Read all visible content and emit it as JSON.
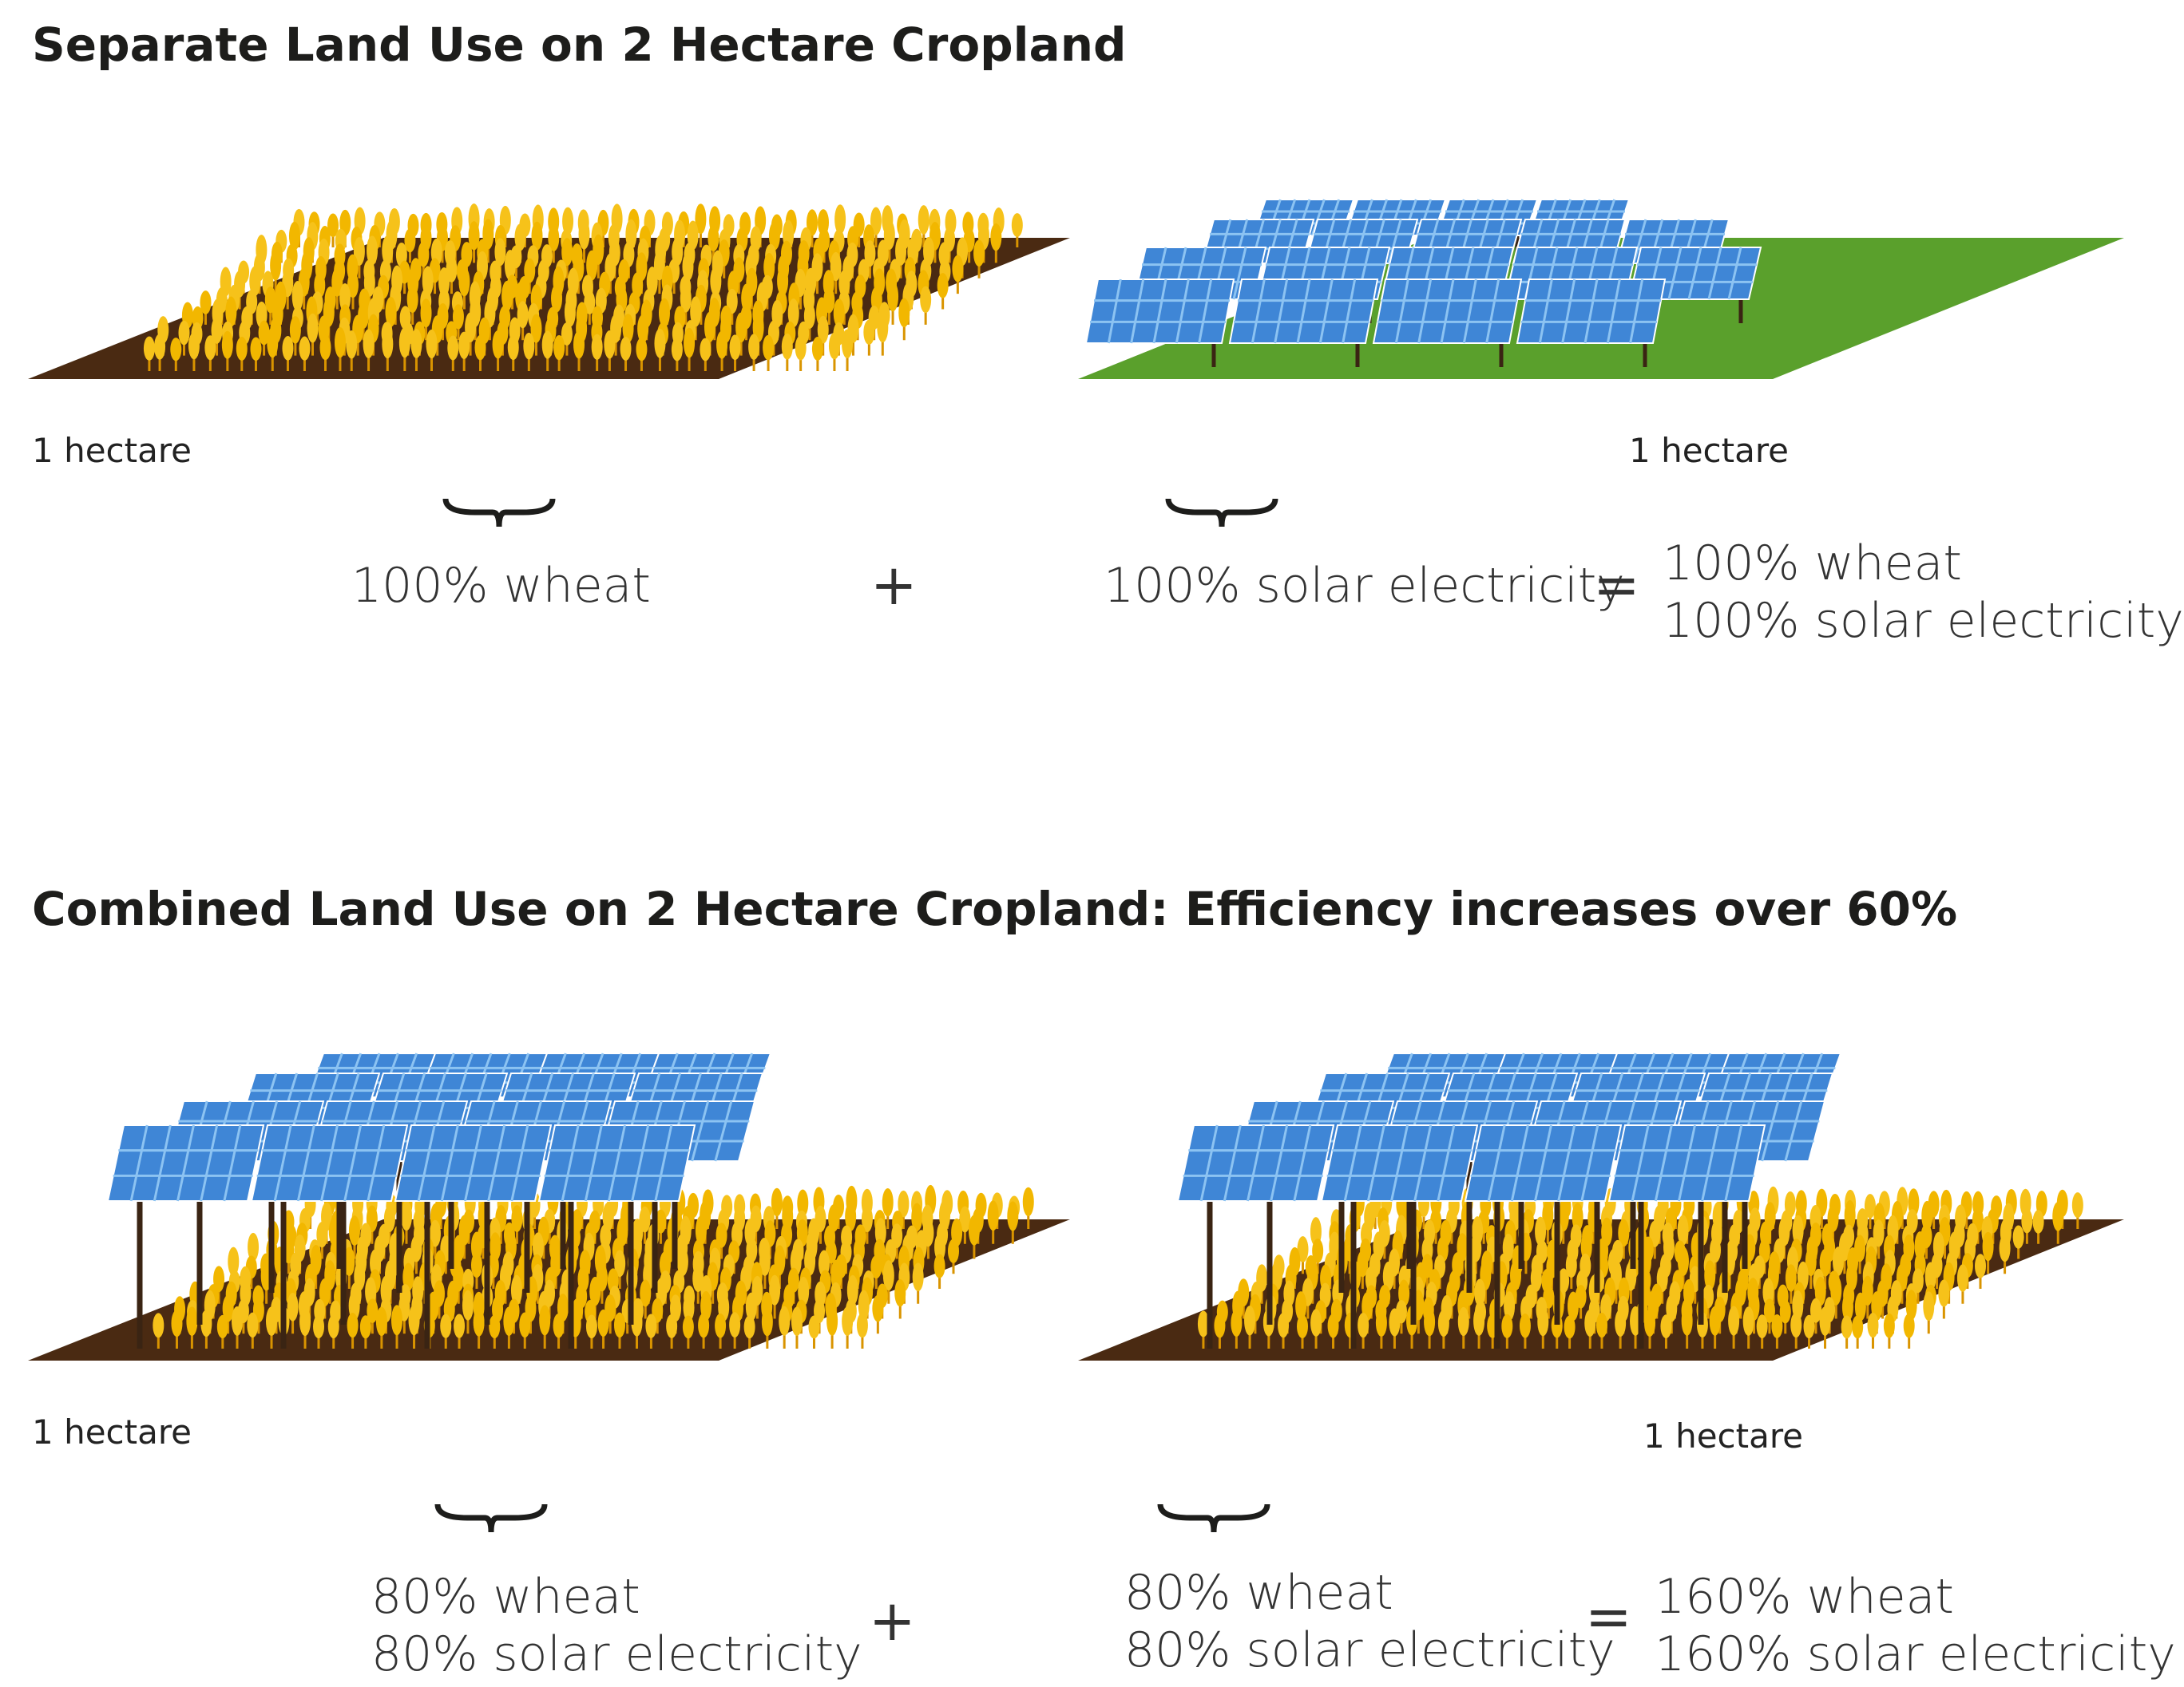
{
  "section_separate": {
    "title": "Separate Land Use on 2 Hectare Cropland",
    "left_area": "1 hectare",
    "right_area": "1 hectare",
    "left_result": "100% wheat",
    "plus": "+",
    "right_result": "100% solar electricity",
    "equals": "=",
    "total_line1": "100% wheat",
    "total_line2": "100% solar electricity"
  },
  "section_combined": {
    "title": "Combined Land Use on 2 Hectare Cropland: Efficiency increases over 60%",
    "left_area": "1 hectare",
    "right_area": "1 hectare",
    "left_line1": "80% wheat",
    "left_line2": "80% solar electricity",
    "plus": "+",
    "right_line1": "80% wheat",
    "right_line2": "80% solar electricity",
    "equals": "=",
    "total_line1": "160% wheat",
    "total_line2": "160% solar electricity"
  },
  "colors": {
    "soil": "#4a2a12",
    "grass": "#5aa02c",
    "wheat": "#f2b700",
    "wheat_dark": "#d99400",
    "panel": "#3f86d6",
    "panel_light": "#8cc3f2",
    "post": "#3a2413"
  },
  "icons": [
    "wheat-field-illustration",
    "solar-park-illustration",
    "agrivoltaic-illustration",
    "curly-brace-icon"
  ]
}
